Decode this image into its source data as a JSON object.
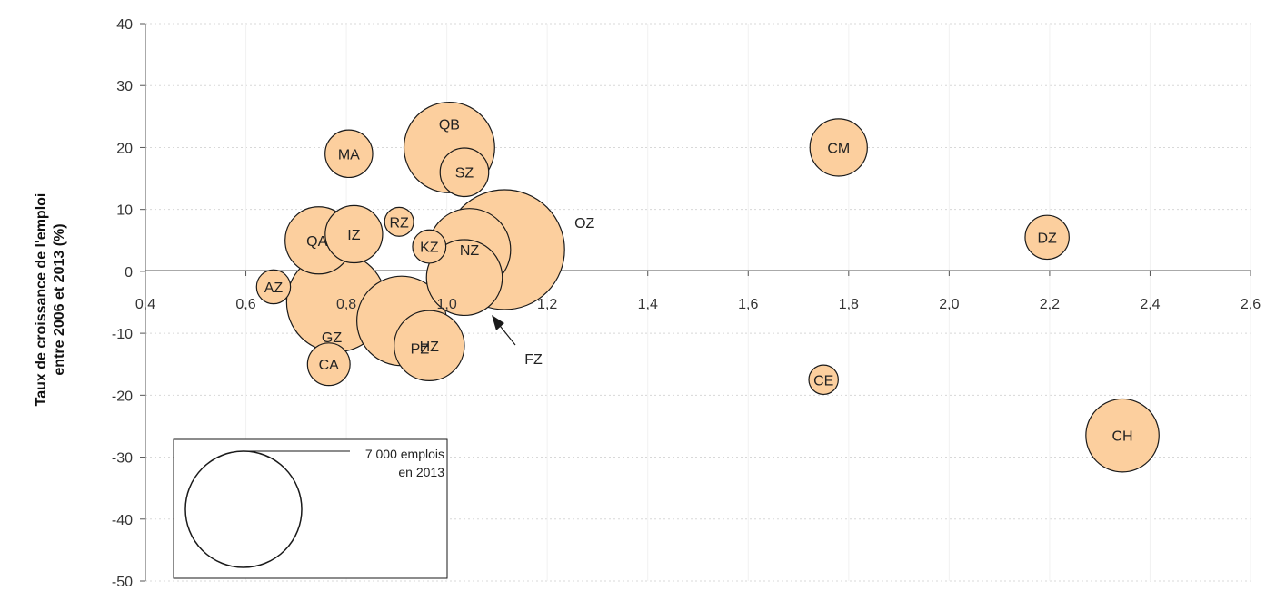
{
  "chart_data": {
    "type": "scatter",
    "ylabel_lines": [
      "Taux de croissance de l'emploi",
      "entre 2006 et 2013 (%)"
    ],
    "xlabel": "",
    "xlim": [
      0.4,
      2.6
    ],
    "ylim": [
      -50,
      40
    ],
    "x_ticks": [
      "0,4",
      "0,6",
      "0,8",
      "1,0",
      "1,2",
      "1,4",
      "1,6",
      "1,8",
      "2,0",
      "2,2",
      "2,4",
      "2,6"
    ],
    "y_ticks": [
      "40",
      "30",
      "20",
      "10",
      "0",
      "-10",
      "-20",
      "-30",
      "-40",
      "-50"
    ],
    "grid": true,
    "legend": {
      "line1": "7 000 emplois",
      "line2": "en 2013",
      "reference_size": 7000,
      "placement": "bottom-left"
    },
    "annotation": {
      "label": "FZ",
      "points_to": "FZ"
    },
    "colors": {
      "bubble_fill": "#FCCF9E",
      "bubble_stroke": "#1a1a1a",
      "grid": "#d8d8d8"
    },
    "points": [
      {
        "label": "OZ",
        "x": 1.115,
        "y": 3.5,
        "size": 7000
      },
      {
        "label": "GZ",
        "x": 0.78,
        "y": -5,
        "size": 4800
      },
      {
        "label": "QB",
        "x": 1.005,
        "y": 20,
        "size": 4000
      },
      {
        "label": "FZ",
        "x": 1.035,
        "y": -1,
        "size": 2800
      },
      {
        "label": "NZ",
        "x": 1.045,
        "y": 3.5,
        "size": 3300
      },
      {
        "label": "PZ",
        "x": 0.91,
        "y": -8,
        "size": 3900
      },
      {
        "label": "QA",
        "x": 0.745,
        "y": 5,
        "size": 2200
      },
      {
        "label": "HZ",
        "x": 0.965,
        "y": -12,
        "size": 2400
      },
      {
        "label": "CH",
        "x": 2.345,
        "y": -26.5,
        "size": 2600
      },
      {
        "label": "IZ",
        "x": 0.815,
        "y": 6,
        "size": 1600
      },
      {
        "label": "CM",
        "x": 1.78,
        "y": 20,
        "size": 1600
      },
      {
        "label": "SZ",
        "x": 1.035,
        "y": 16,
        "size": 1150
      },
      {
        "label": "MA",
        "x": 0.805,
        "y": 19,
        "size": 1100
      },
      {
        "label": "DZ",
        "x": 2.195,
        "y": 5.5,
        "size": 940
      },
      {
        "label": "CA",
        "x": 0.765,
        "y": -15,
        "size": 880
      },
      {
        "label": "AZ",
        "x": 0.655,
        "y": -2.5,
        "size": 560
      },
      {
        "label": "KZ",
        "x": 0.965,
        "y": 4,
        "size": 540
      },
      {
        "label": "RZ",
        "x": 0.905,
        "y": 8,
        "size": 410
      },
      {
        "label": "CE",
        "x": 1.75,
        "y": -17.5,
        "size": 420
      }
    ]
  }
}
